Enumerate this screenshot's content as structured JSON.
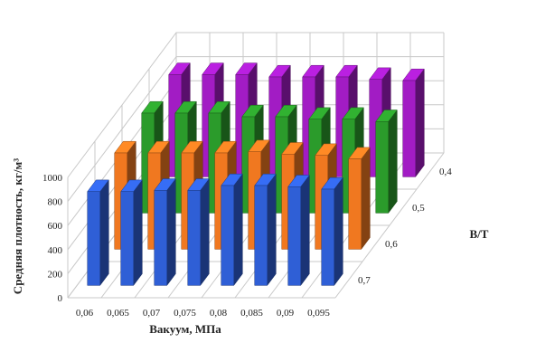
{
  "chart_data": {
    "type": "bar",
    "subtype": "3d-clustered-column",
    "xlabel": "Вакуум, МПа",
    "ylabel": "Средняя плотность, кг/м³",
    "zlabel": "В/Т",
    "categories": [
      "0,06",
      "0,065",
      "0,07",
      "0,075",
      "0,08",
      "0,085",
      "0,09",
      "0,095"
    ],
    "y_ticks": [
      "0",
      "200",
      "400",
      "600",
      "800",
      "1000"
    ],
    "ylim": [
      0,
      1000
    ],
    "grid": true,
    "series": [
      {
        "name": "0,7",
        "color": "#2f5fd6",
        "values": [
          780,
          780,
          790,
          790,
          830,
          830,
          820,
          800
        ]
      },
      {
        "name": "0,6",
        "color": "#f07820",
        "values": [
          800,
          800,
          800,
          800,
          810,
          790,
          780,
          750
        ]
      },
      {
        "name": "0,5",
        "color": "#2b9b2b",
        "values": [
          830,
          830,
          830,
          800,
          800,
          780,
          780,
          760
        ]
      },
      {
        "name": "0,4",
        "color": "#a21cc4",
        "values": [
          850,
          850,
          850,
          830,
          830,
          830,
          810,
          800
        ]
      }
    ]
  }
}
